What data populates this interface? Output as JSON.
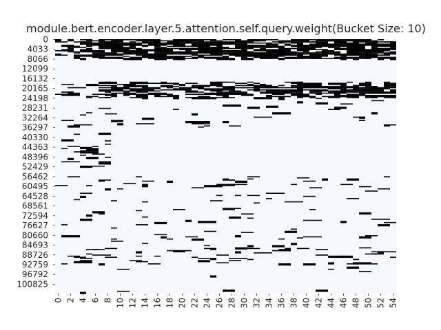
{
  "chart_data": {
    "type": "heatmap",
    "title": "module.bert.encoder.layer.5.attention.self.query.weight(Bucket Size: 10)",
    "xlabel": "",
    "ylabel": "",
    "colorbar": false,
    "grid": false,
    "colors": {
      "low": "#f7f8fe",
      "high": "#000000"
    },
    "value_range": [
      0,
      1
    ],
    "x_columns": 55,
    "y_rows": 104800,
    "x_ticks": [
      "0",
      "2",
      "4",
      "6",
      "8",
      "10",
      "12",
      "14",
      "16",
      "18",
      "20",
      "22",
      "24",
      "26",
      "28",
      "30",
      "32",
      "34",
      "36",
      "38",
      "40",
      "42",
      "44",
      "46",
      "48",
      "50",
      "52",
      "54"
    ],
    "y_ticks": [
      "0",
      "4033",
      "8066",
      "12099",
      "16132",
      "20165",
      "24198",
      "28231",
      "32264",
      "36297",
      "40330",
      "44363",
      "48396",
      "52429",
      "56462",
      "60495",
      "64528",
      "68561",
      "72594",
      "76627",
      "80660",
      "84693",
      "88726",
      "92759",
      "96792",
      "100825"
    ],
    "active_bands": [
      {
        "rows": [
          0,
          8066
        ],
        "cols": [
          3,
          54
        ],
        "density": 0.55
      },
      {
        "rows": [
          0,
          8066
        ],
        "cols": [
          0,
          2
        ],
        "density": 0.12
      },
      {
        "rows": [
          17500,
          24198
        ],
        "cols": [
          7,
          54
        ],
        "density": 0.38
      },
      {
        "rows": [
          17500,
          24198
        ],
        "cols": [
          0,
          6
        ],
        "density": 0.08
      },
      {
        "rows": [
          24198,
          36297
        ],
        "cols": [
          0,
          54
        ],
        "density": 0.025
      },
      {
        "rows": [
          38500,
          52429
        ],
        "cols": [
          0,
          8
        ],
        "density": 0.1
      },
      {
        "rows": [
          56462,
          64528
        ],
        "cols": [
          0,
          54
        ],
        "density": 0.03
      },
      {
        "rows": [
          64528,
          72594
        ],
        "cols": [
          0,
          54
        ],
        "density": 0.012
      },
      {
        "rows": [
          72594,
          86000
        ],
        "cols": [
          0,
          54
        ],
        "density": 0.022
      },
      {
        "rows": [
          86000,
          92759
        ],
        "cols": [
          0,
          54
        ],
        "density": 0.06
      },
      {
        "rows": [
          92759,
          104800
        ],
        "cols": [
          0,
          54
        ],
        "density": 0.01
      }
    ]
  }
}
